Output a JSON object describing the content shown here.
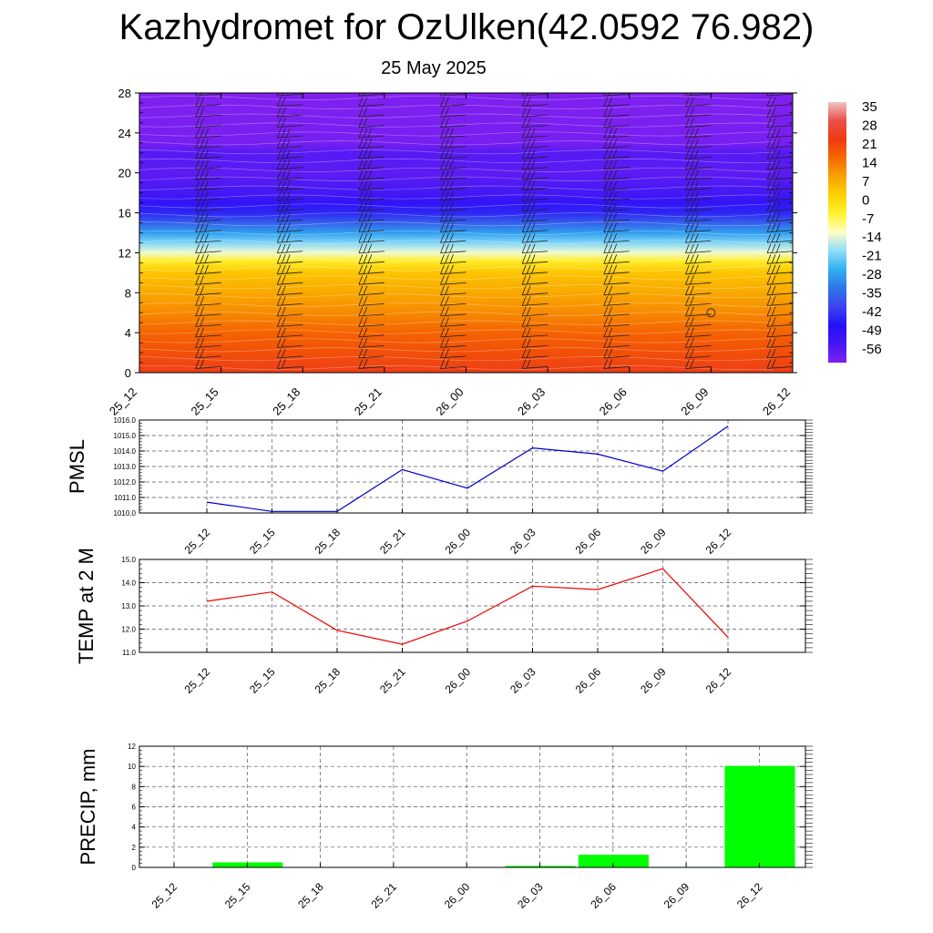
{
  "title": "Kazhydromet for OzUlken(42.0592 76.982)",
  "subtitle": "25 May 2025",
  "chart_data": [
    {
      "type": "heatmap",
      "time_labels": [
        "25_12",
        "25_15",
        "25_18",
        "25_21",
        "26_00",
        "26_03",
        "26_06",
        "26_09",
        "26_12"
      ],
      "y_ticks": [
        0,
        4,
        8,
        12,
        16,
        20,
        24,
        28
      ],
      "ylim": [
        0,
        28
      ],
      "colorbar_labels": [
        "35",
        "28",
        "21",
        "14",
        "7",
        "0",
        "-7",
        "-14",
        "-21",
        "-28",
        "-35",
        "-42",
        "-49",
        "-56"
      ],
      "temperature_profile": [
        {
          "y": 0,
          "t": 22
        },
        {
          "y": 2,
          "t": 18
        },
        {
          "y": 4,
          "t": 15
        },
        {
          "y": 6,
          "t": 10
        },
        {
          "y": 8,
          "t": 6
        },
        {
          "y": 10,
          "t": 2
        },
        {
          "y": 11.2,
          "t": -6
        },
        {
          "y": 12,
          "t": -15
        },
        {
          "y": 13,
          "t": -22
        },
        {
          "y": 14,
          "t": -30
        },
        {
          "y": 15,
          "t": -38
        },
        {
          "y": 16,
          "t": -46
        },
        {
          "y": 17,
          "t": -52
        },
        {
          "y": 18,
          "t": -56
        },
        {
          "y": 20,
          "t": -59
        },
        {
          "y": 22,
          "t": -58
        },
        {
          "y": 23,
          "t": -62
        },
        {
          "y": 28,
          "t": -66
        }
      ],
      "colormap": [
        {
          "t": 35,
          "c": "#f0c4c4"
        },
        {
          "t": 28,
          "c": "#e8504a"
        },
        {
          "t": 21,
          "c": "#f03a10"
        },
        {
          "t": 14,
          "c": "#f56a00"
        },
        {
          "t": 7,
          "c": "#f8a200"
        },
        {
          "t": 0,
          "c": "#fdd200"
        },
        {
          "t": -7,
          "c": "#fff230"
        },
        {
          "t": -14,
          "c": "#ffffc8"
        },
        {
          "t": -21,
          "c": "#8fdcf8"
        },
        {
          "t": -28,
          "c": "#30b0f0"
        },
        {
          "t": -35,
          "c": "#2f74e8"
        },
        {
          "t": -42,
          "c": "#3c44f0"
        },
        {
          "t": -49,
          "c": "#2410f8"
        },
        {
          "t": -56,
          "c": "#4418f5"
        },
        {
          "t": -63,
          "c": "#8020f0"
        }
      ],
      "wind_barb_columns": [
        "25_12",
        "25_15",
        "25_18",
        "25_21",
        "26_00",
        "26_03",
        "26_06",
        "26_09",
        "26_12"
      ],
      "marker": {
        "time": "26_09",
        "y": 6,
        "symbol": "circle"
      }
    },
    {
      "type": "line",
      "ylabel": "PMSL",
      "categories": [
        "25_12",
        "25_15",
        "25_18",
        "25_21",
        "26_00",
        "26_03",
        "26_06",
        "26_09",
        "26_12"
      ],
      "values": [
        1010.7,
        1010.1,
        1010.1,
        1012.8,
        1011.6,
        1014.2,
        1013.8,
        1012.7,
        1015.6
      ],
      "ylim": [
        1010.0,
        1016.0
      ],
      "y_ticks": [
        "1010.0",
        "1011.0",
        "1012.0",
        "1013.0",
        "1014.0",
        "1015.0",
        "1016.0"
      ],
      "color": "#0000cc",
      "grid": true
    },
    {
      "type": "line",
      "ylabel": "TEMP at 2 M",
      "categories": [
        "25_12",
        "25_15",
        "25_18",
        "25_21",
        "26_00",
        "26_03",
        "26_06",
        "26_09",
        "26_12"
      ],
      "values": [
        13.2,
        13.6,
        11.95,
        11.35,
        12.35,
        13.85,
        13.7,
        14.6,
        11.65
      ],
      "ylim": [
        11.0,
        15.0
      ],
      "y_ticks": [
        "11.0",
        "12.0",
        "13.0",
        "14.0",
        "15.0"
      ],
      "color": "#ee0000",
      "grid": true
    },
    {
      "type": "bar",
      "ylabel": "PRECIP, mm",
      "categories": [
        "25_12",
        "25_15",
        "25_18",
        "25_21",
        "26_00",
        "26_03",
        "26_06",
        "26_09",
        "26_12"
      ],
      "values": [
        0,
        0.5,
        0,
        0,
        0,
        0.15,
        1.25,
        0.05,
        10.05
      ],
      "ylim": [
        0,
        12
      ],
      "y_ticks": [
        "0",
        "2",
        "4",
        "6",
        "8",
        "10",
        "12"
      ],
      "color": "#00ff00",
      "grid": true
    }
  ]
}
